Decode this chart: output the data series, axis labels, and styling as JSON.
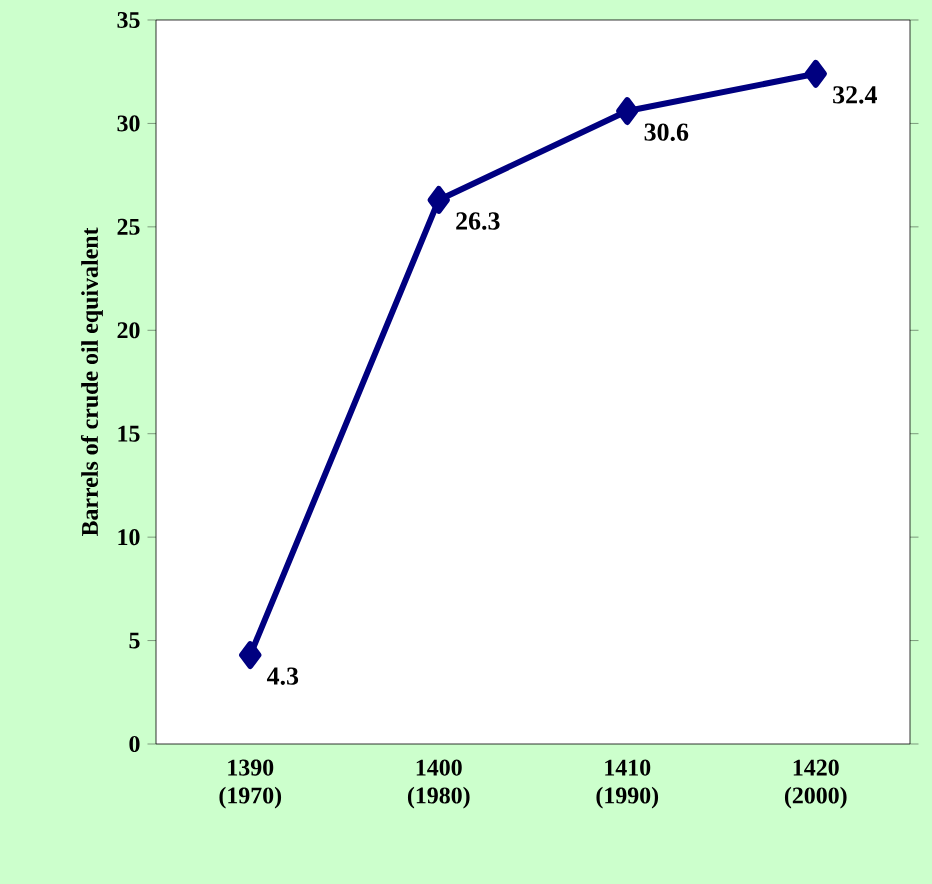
{
  "chart_data": {
    "type": "line",
    "ylabel": "Barrels of crude oil equivalent",
    "categories": [
      "1390 (1970)",
      "1400 (1980)",
      "1410 (1990)",
      "1420 (2000)"
    ],
    "series": [
      {
        "color": "#000080",
        "values": [
          4.3,
          26.3,
          30.6,
          32.4
        ]
      }
    ],
    "ylim": [
      0,
      35
    ],
    "yticks": [
      0,
      5,
      10,
      15,
      20,
      25,
      30,
      35
    ],
    "data_labels": true,
    "marker": "diamond",
    "line_style": "solid"
  }
}
